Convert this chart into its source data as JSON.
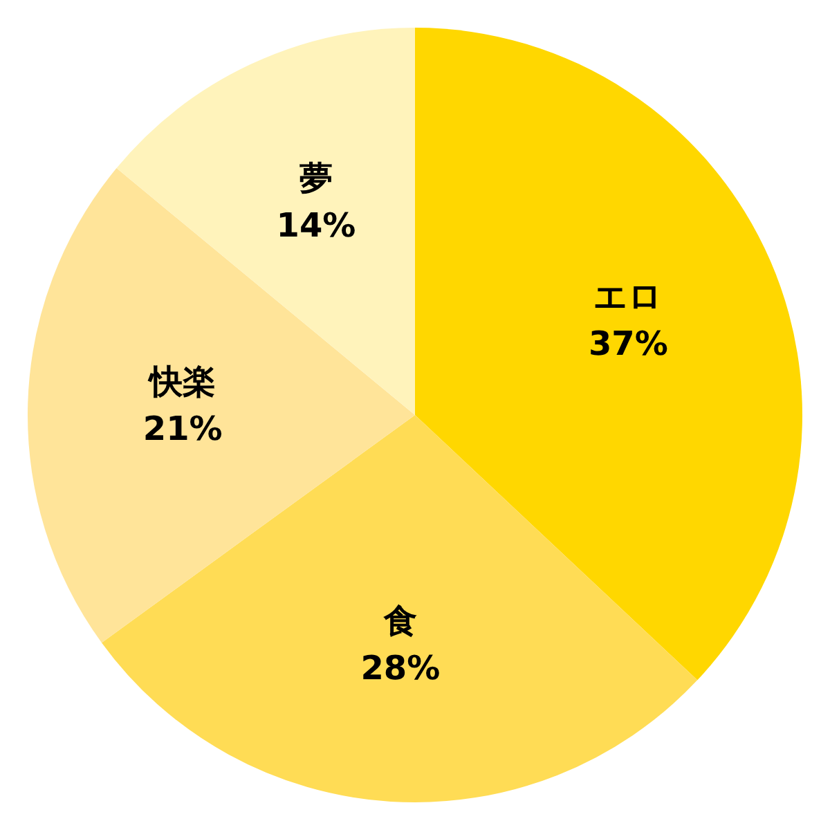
{
  "chart_data": {
    "type": "pie",
    "categories": [
      "エロ",
      "食",
      "快楽",
      "夢"
    ],
    "values": [
      37,
      28,
      21,
      14
    ],
    "value_labels": [
      "37%",
      "28%",
      "21%",
      "14%"
    ],
    "colors": [
      "#ffd700",
      "#ffdc55",
      "#ffe499",
      "#fff3bb"
    ],
    "legend": false
  }
}
